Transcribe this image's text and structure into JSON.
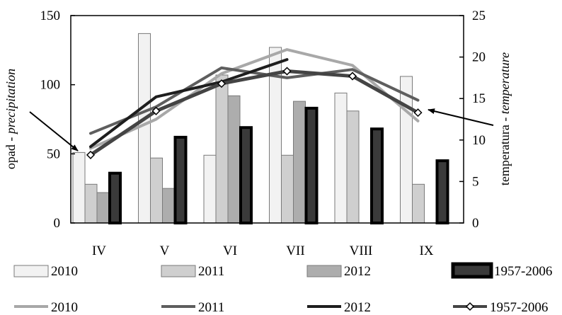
{
  "chart_data": {
    "type": "bar+line",
    "categories": [
      "IV",
      "V",
      "VI",
      "VII",
      "VIII",
      "IX"
    ],
    "y_left": {
      "label_plain": "opad - ",
      "label_italic": "precipitation",
      "range": [
        0,
        150
      ],
      "ticks": [
        0,
        50,
        100,
        150
      ]
    },
    "y_right": {
      "label_plain": "temperatura - ",
      "label_italic": "temperature",
      "range": [
        0,
        25
      ],
      "ticks": [
        0,
        5,
        10,
        15,
        20,
        25
      ]
    },
    "grid": false,
    "bar_series": [
      {
        "name": "2010",
        "values": [
          51,
          137,
          49,
          127,
          94,
          106
        ],
        "fill": "#f2f2f2",
        "stroke": "#7a7a7a"
      },
      {
        "name": "2011",
        "values": [
          28,
          47,
          107,
          49,
          81,
          28
        ],
        "fill": "#cfcfcf",
        "stroke": "#7a7a7a"
      },
      {
        "name": "2012",
        "values": [
          22,
          25,
          92,
          88,
          0,
          0
        ],
        "fill": "#adadad",
        "stroke": "#7a7a7a"
      },
      {
        "name": "1957-2006",
        "values": [
          36,
          62,
          69,
          83,
          68,
          45
        ],
        "fill": "#3a3a3a",
        "stroke": "#000000"
      }
    ],
    "line_series": [
      {
        "name": "2010",
        "values": [
          9.0,
          12.5,
          18.0,
          20.9,
          19.0,
          12.3
        ],
        "color": "#a8a8a8",
        "marker": false
      },
      {
        "name": "2011",
        "values": [
          10.8,
          14.0,
          18.7,
          17.5,
          18.5,
          14.8
        ],
        "color": "#5e5e5e",
        "marker": false
      },
      {
        "name": "2012",
        "values": [
          9.2,
          15.2,
          17.0,
          19.7,
          null,
          null
        ],
        "color": "#1e1e1e",
        "marker": false
      },
      {
        "name": "1957-2006",
        "values": [
          8.2,
          13.5,
          16.8,
          18.3,
          17.7,
          13.3
        ],
        "color": "#444444",
        "marker": true
      }
    ]
  }
}
